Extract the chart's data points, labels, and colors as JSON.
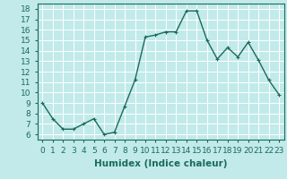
{
  "x": [
    0,
    1,
    2,
    3,
    4,
    5,
    6,
    7,
    8,
    9,
    10,
    11,
    12,
    13,
    14,
    15,
    16,
    17,
    18,
    19,
    20,
    21,
    22,
    23
  ],
  "y": [
    9.0,
    7.5,
    6.5,
    6.5,
    7.0,
    7.5,
    6.0,
    6.2,
    8.7,
    11.2,
    15.3,
    15.5,
    15.8,
    15.8,
    17.8,
    17.8,
    15.0,
    13.2,
    14.3,
    13.4,
    14.8,
    13.1,
    11.2,
    9.8
  ],
  "line_color": "#1a6b5a",
  "marker": "+",
  "marker_size": 3,
  "bg_color": "#c2eaea",
  "grid_color": "#ffffff",
  "xlabel": "Humidex (Indice chaleur)",
  "xlim": [
    -0.5,
    23.5
  ],
  "ylim": [
    5.5,
    18.5
  ],
  "yticks": [
    6,
    7,
    8,
    9,
    10,
    11,
    12,
    13,
    14,
    15,
    16,
    17,
    18
  ],
  "xticks": [
    0,
    1,
    2,
    3,
    4,
    5,
    6,
    7,
    8,
    9,
    10,
    11,
    12,
    13,
    14,
    15,
    16,
    17,
    18,
    19,
    20,
    21,
    22,
    23
  ],
  "xlabel_fontsize": 7.5,
  "tick_fontsize": 6.5,
  "linewidth": 1.0,
  "markeredgewidth": 0.8
}
